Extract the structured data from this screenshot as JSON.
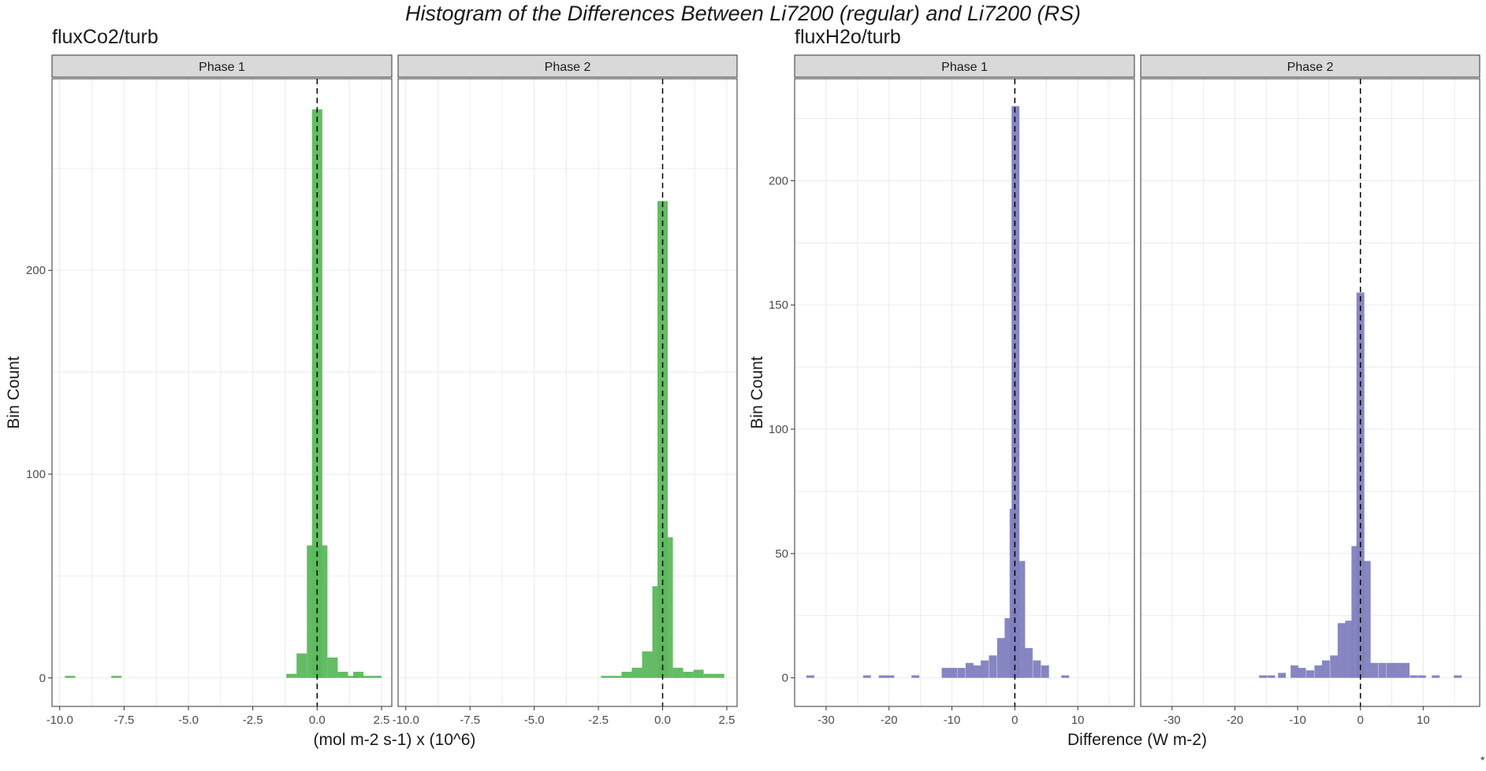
{
  "title": "Histogram of the Differences Between Li7200 (regular) and Li7200 (RS)",
  "footnote": "*",
  "colors": {
    "co2": "#5cb85c",
    "h2o": "#7f7fbf",
    "strip": "#d9d9d9",
    "grid": "#ebebeb",
    "dash": "#000000"
  },
  "chart_data": [
    {
      "type": "bar",
      "subtitle": "fluxCo2/turb",
      "ylabel": "Bin Count",
      "xlabel": "(mol m-2 s-1) x (10^6)",
      "xlim": [
        -10.3,
        2.9
      ],
      "ylim": [
        -14,
        294
      ],
      "xticks": [
        -10.0,
        -7.5,
        -5.0,
        -2.5,
        0.0,
        2.5
      ],
      "xtick_labels": [
        "-10.0",
        "-7.5",
        "-5.0",
        "-2.5",
        "0.0",
        "2.5"
      ],
      "yticks": [
        0,
        100,
        200
      ],
      "bin_width": 0.4,
      "reference_line_x": 0,
      "color": "#5cb85c",
      "panels": [
        {
          "strip": "Phase 1",
          "bins": [
            {
              "x": -9.6,
              "count": 1
            },
            {
              "x": -7.8,
              "count": 1
            },
            {
              "x": -1.0,
              "count": 2
            },
            {
              "x": -0.6,
              "count": 12
            },
            {
              "x": -0.2,
              "count": 65
            },
            {
              "x": 0.0,
              "count": 279
            },
            {
              "x": 0.2,
              "count": 65
            },
            {
              "x": 0.6,
              "count": 10
            },
            {
              "x": 1.0,
              "count": 3
            },
            {
              "x": 1.4,
              "count": 1
            },
            {
              "x": 1.6,
              "count": 3
            },
            {
              "x": 1.9,
              "count": 1
            },
            {
              "x": 2.3,
              "count": 1
            }
          ]
        },
        {
          "strip": "Phase 2",
          "bins": [
            {
              "x": -2.2,
              "count": 1
            },
            {
              "x": -1.8,
              "count": 1
            },
            {
              "x": -1.4,
              "count": 3
            },
            {
              "x": -1.0,
              "count": 5
            },
            {
              "x": -0.6,
              "count": 13
            },
            {
              "x": -0.2,
              "count": 45
            },
            {
              "x": 0.0,
              "count": 234
            },
            {
              "x": 0.2,
              "count": 69
            },
            {
              "x": 0.6,
              "count": 5
            },
            {
              "x": 1.0,
              "count": 3
            },
            {
              "x": 1.4,
              "count": 4
            },
            {
              "x": 1.8,
              "count": 2
            },
            {
              "x": 2.2,
              "count": 2
            }
          ]
        }
      ]
    },
    {
      "type": "bar",
      "subtitle": "fluxH2o/turb",
      "ylabel": "Bin Count",
      "xlabel": "Difference (W m-2)",
      "xlim": [
        -35,
        19
      ],
      "ylim": [
        -11.5,
        241
      ],
      "xticks": [
        -30,
        -20,
        -10,
        0,
        10
      ],
      "xtick_labels": [
        "-30",
        "-20",
        "-10",
        "0",
        "10"
      ],
      "yticks": [
        0,
        50,
        100,
        150,
        200
      ],
      "bin_width": 1.25,
      "reference_line_x": 0,
      "color": "#7f7fbf",
      "panels": [
        {
          "strip": "Phase 1",
          "bins": [
            {
              "x": -32.5,
              "count": 1
            },
            {
              "x": -23.5,
              "count": 1
            },
            {
              "x": -21.0,
              "count": 1
            },
            {
              "x": -19.8,
              "count": 1
            },
            {
              "x": -15.8,
              "count": 1
            },
            {
              "x": -11.0,
              "count": 4
            },
            {
              "x": -9.8,
              "count": 4
            },
            {
              "x": -8.5,
              "count": 4
            },
            {
              "x": -7.2,
              "count": 6
            },
            {
              "x": -6.0,
              "count": 5
            },
            {
              "x": -4.8,
              "count": 7
            },
            {
              "x": -3.5,
              "count": 9
            },
            {
              "x": -2.2,
              "count": 16
            },
            {
              "x": -1.0,
              "count": 24
            },
            {
              "x": -0.2,
              "count": 68
            },
            {
              "x": 0.1,
              "count": 230
            },
            {
              "x": 1.0,
              "count": 47
            },
            {
              "x": 2.2,
              "count": 12
            },
            {
              "x": 3.5,
              "count": 7
            },
            {
              "x": 4.8,
              "count": 5
            },
            {
              "x": 8.0,
              "count": 1
            }
          ]
        },
        {
          "strip": "Phase 2",
          "bins": [
            {
              "x": -15.5,
              "count": 1
            },
            {
              "x": -14.2,
              "count": 1
            },
            {
              "x": -12.5,
              "count": 2
            },
            {
              "x": -10.5,
              "count": 5
            },
            {
              "x": -9.3,
              "count": 4
            },
            {
              "x": -8.0,
              "count": 3
            },
            {
              "x": -6.7,
              "count": 5
            },
            {
              "x": -5.5,
              "count": 7
            },
            {
              "x": -4.2,
              "count": 9
            },
            {
              "x": -3.0,
              "count": 22
            },
            {
              "x": -1.8,
              "count": 23
            },
            {
              "x": -0.8,
              "count": 53
            },
            {
              "x": 0.0,
              "count": 155
            },
            {
              "x": 1.0,
              "count": 47
            },
            {
              "x": 2.2,
              "count": 6
            },
            {
              "x": 3.5,
              "count": 6
            },
            {
              "x": 4.8,
              "count": 6
            },
            {
              "x": 6.0,
              "count": 6
            },
            {
              "x": 7.2,
              "count": 6
            },
            {
              "x": 8.5,
              "count": 1
            },
            {
              "x": 9.8,
              "count": 1
            },
            {
              "x": 12.0,
              "count": 1
            },
            {
              "x": 15.5,
              "count": 1
            }
          ]
        }
      ]
    }
  ]
}
